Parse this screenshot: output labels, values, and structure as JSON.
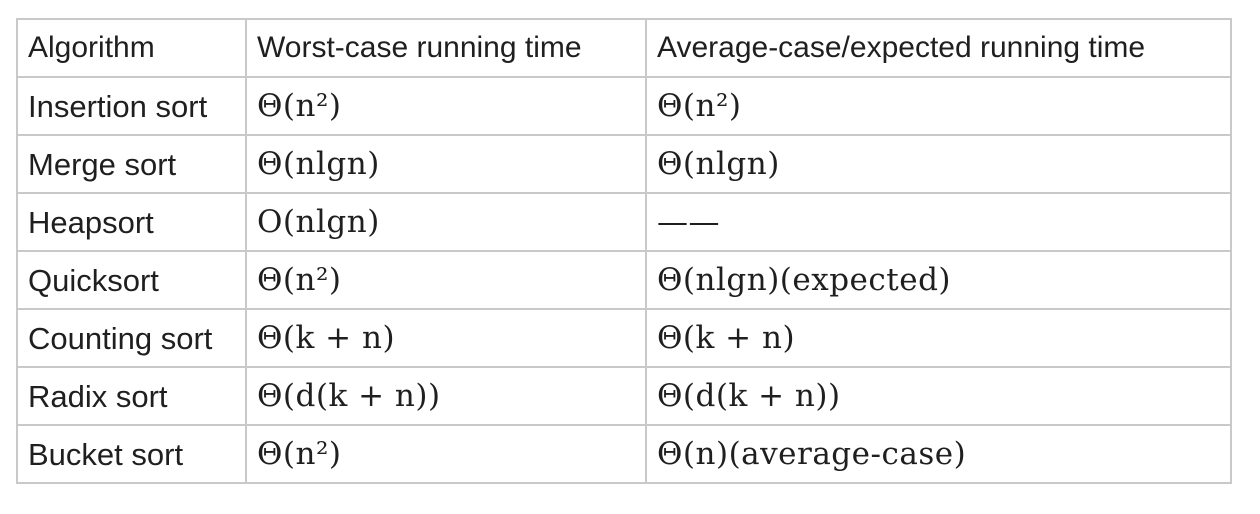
{
  "table": {
    "headers": [
      "Algorithm",
      "Worst-case running time",
      "Average-case/expected running time"
    ],
    "rows": [
      {
        "algorithm": "Insertion sort",
        "worst": "Θ(n²)",
        "average": "Θ(n²)"
      },
      {
        "algorithm": "Merge sort",
        "worst": "Θ(nlgn)",
        "average": "Θ(nlgn)"
      },
      {
        "algorithm": "Heapsort",
        "worst": "O(nlgn)",
        "average": "——"
      },
      {
        "algorithm": "Quicksort",
        "worst": "Θ(n²)",
        "average": "Θ(nlgn)(expected)"
      },
      {
        "algorithm": "Counting sort",
        "worst": "Θ(k + n)",
        "average": "Θ(k + n)"
      },
      {
        "algorithm": "Radix sort",
        "worst": "Θ(d(k + n))",
        "average": "Θ(d(k + n))"
      },
      {
        "algorithm": "Bucket sort",
        "worst": "Θ(n²)",
        "average": "Θ(n)(average-case)"
      }
    ]
  }
}
